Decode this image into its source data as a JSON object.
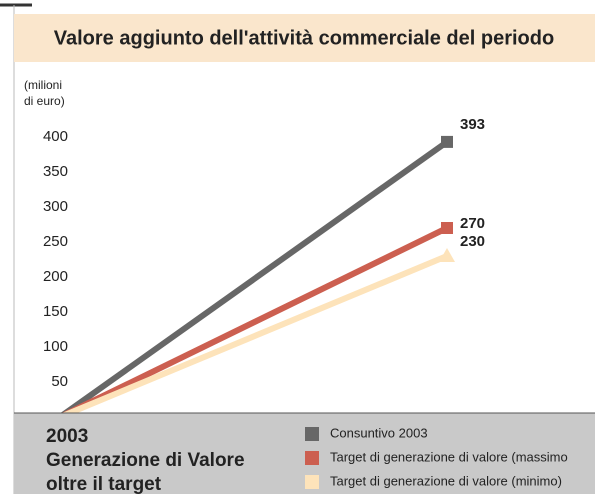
{
  "chart_data": {
    "type": "line",
    "title": "Valore aggiunto dell'attività commerciale del periodo",
    "y_label": [
      "(milioni",
      "di euro)"
    ],
    "subtitle": [
      "2003",
      "Generazione di Valore",
      "oltre il target"
    ],
    "categories": [
      null,
      null
    ],
    "series": [
      {
        "name": "Consuntivo 2003",
        "color": "#676767",
        "marker": "square",
        "values": [
          0,
          393
        ]
      },
      {
        "name": "Target di generazione di valore (massimo",
        "color": "#cc5f50",
        "marker": "square",
        "values": [
          0,
          270
        ]
      },
      {
        "name": "Target di generazione di valore (minimo)",
        "color": "#fde3ba",
        "marker": "triangle",
        "values": [
          0,
          230
        ]
      }
    ],
    "ylim": [
      0,
      450
    ],
    "yticks": [
      50,
      100,
      150,
      200,
      250,
      300,
      350,
      400
    ]
  }
}
